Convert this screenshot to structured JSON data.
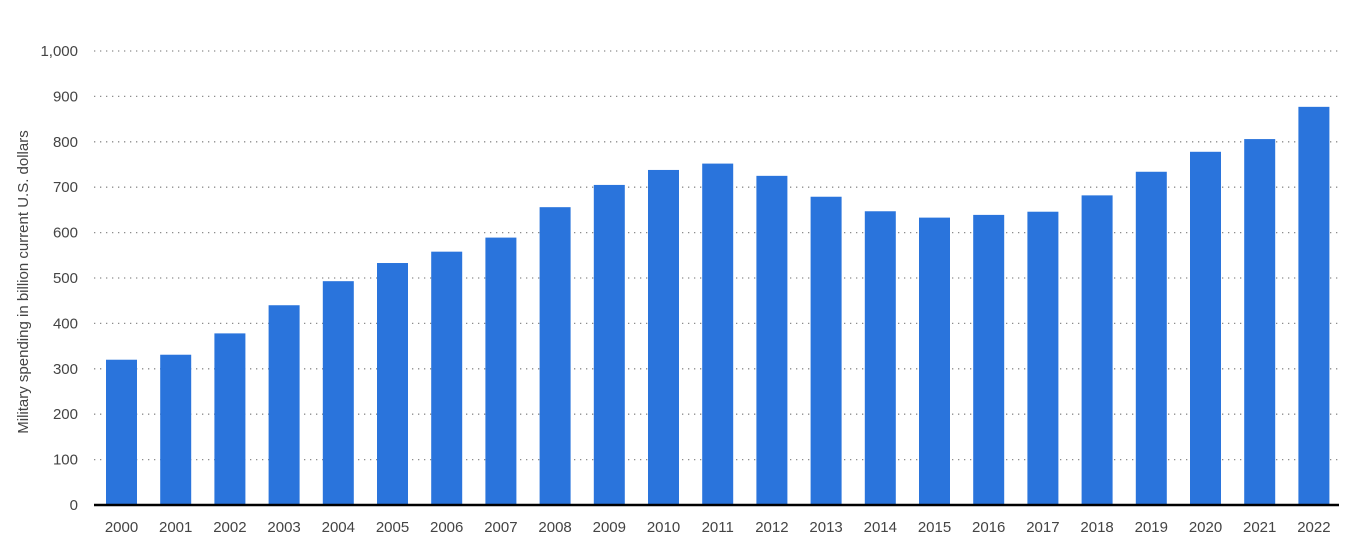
{
  "chart_data": {
    "type": "bar",
    "title": "",
    "xlabel": "",
    "ylabel": "Military spending in billion current U.S. dollars",
    "categories": [
      "2000",
      "2001",
      "2002",
      "2003",
      "2004",
      "2005",
      "2006",
      "2007",
      "2008",
      "2009",
      "2010",
      "2011",
      "2012",
      "2013",
      "2014",
      "2015",
      "2016",
      "2017",
      "2018",
      "2019",
      "2020",
      "2021",
      "2022"
    ],
    "series": [
      {
        "values": [
          320,
          331,
          378,
          440,
          493,
          533,
          558,
          589,
          656,
          705,
          738,
          752,
          725,
          679,
          647,
          633,
          639,
          646,
          682,
          734,
          778,
          806,
          877
        ]
      }
    ],
    "ylim": [
      0,
      1000
    ],
    "yticks": [
      0,
      100,
      200,
      300,
      400,
      500,
      600,
      700,
      800,
      900,
      1000
    ],
    "ytick_labels": [
      "0",
      "100",
      "200",
      "300",
      "400",
      "500",
      "600",
      "700",
      "800",
      "900",
      "1,000"
    ],
    "grid": true,
    "bar_color": "#2a74dc"
  }
}
